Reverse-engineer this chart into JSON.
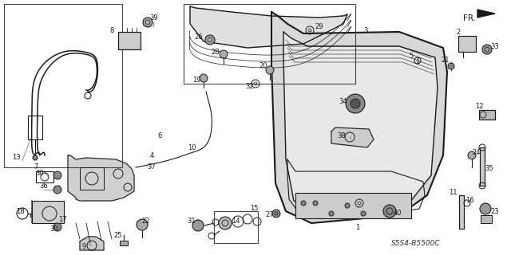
{
  "background_color": "#ffffff",
  "fig_width": 6.4,
  "fig_height": 3.2,
  "dpi": 100,
  "diagram_code": "S5S4-B5500C",
  "line_color": "#1a1a1a",
  "label_fontsize": 6.0
}
